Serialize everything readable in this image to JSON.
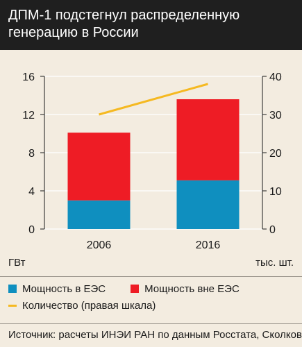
{
  "title": "ДПМ-1 подстегнул распределенную генерацию в России",
  "colors": {
    "header_bg": "#1f1f1f",
    "background": "#f3ece0",
    "in_ees": "#0f8fbf",
    "out_ees": "#ee1c25",
    "count_line": "#f5b921"
  },
  "chart_data": {
    "type": "bar",
    "stacked": true,
    "categories": [
      "2006",
      "2016"
    ],
    "series": [
      {
        "name": "Мощность в ЕЭС",
        "values": [
          3.0,
          5.1
        ],
        "axis": "left"
      },
      {
        "name": "Мощность вне ЕЭС",
        "values": [
          7.1,
          8.5
        ],
        "axis": "left"
      },
      {
        "name": "Количество (правая шкала)",
        "values": [
          30,
          38
        ],
        "axis": "right",
        "type": "line"
      }
    ],
    "ylim_left": [
      0,
      16
    ],
    "yticks_left": [
      "0",
      "4",
      "8",
      "12",
      "16"
    ],
    "ylim_right": [
      0,
      40
    ],
    "yticks_right": [
      "0",
      "10",
      "20",
      "30",
      "40"
    ],
    "ylabel_left": "ГВт",
    "ylabel_right": "тыс. шт.",
    "grid": true
  },
  "legend": {
    "in_ees": "Мощность в ЕЭС",
    "out_ees": "Мощность вне ЕЭС",
    "count": "Количество (правая шкала)"
  },
  "source": "Источник: расчеты ИНЭИ РАН по данным Росстата, Сколково"
}
